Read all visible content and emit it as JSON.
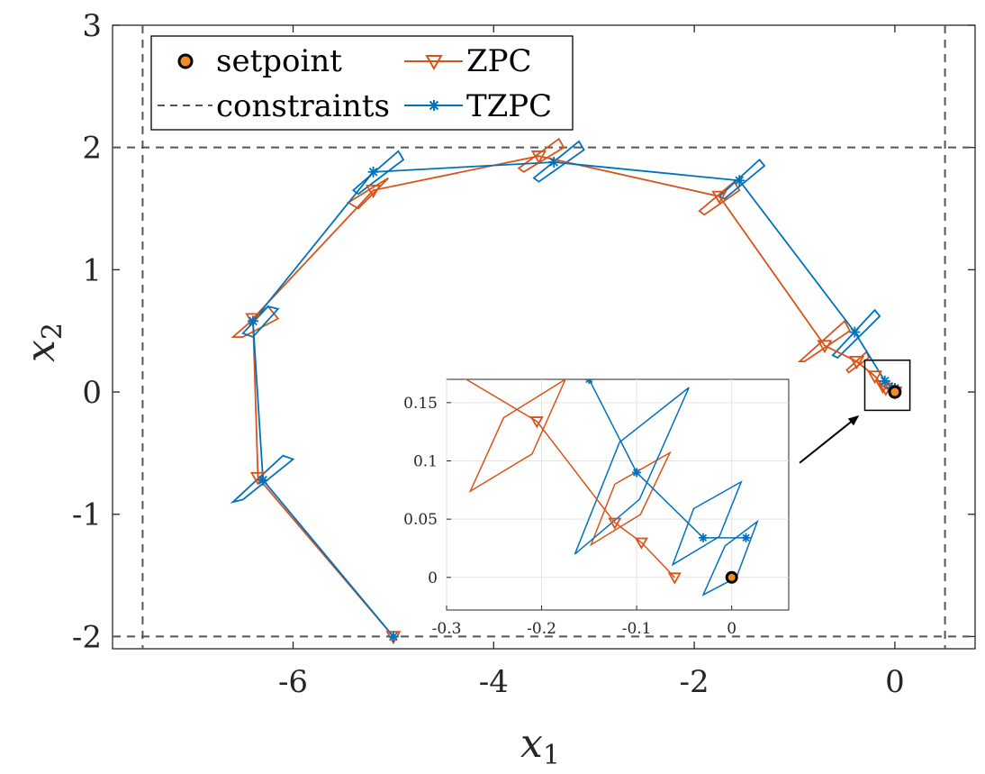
{
  "chart_data": [
    {
      "id": "main",
      "type": "line",
      "xlabel": "x",
      "xlabel_sub": "1",
      "ylabel": "x",
      "ylabel_sub": "2",
      "xlim": [
        -7.8,
        0.8
      ],
      "ylim": [
        -2.1,
        3
      ],
      "xticks": [
        -6,
        -4,
        -2,
        0
      ],
      "xtick_labels": [
        "-6",
        "-4",
        "-2",
        "0"
      ],
      "yticks": [
        -2,
        -1,
        0,
        1,
        2,
        3
      ],
      "ytick_labels": [
        "-2",
        "-1",
        "0",
        "1",
        "2",
        "3"
      ],
      "grid": false,
      "legend_position": "top-left",
      "legend": [
        {
          "label": "setpoint",
          "marker": "filled-circle"
        },
        {
          "label": "constraints",
          "marker": "dashed-line"
        },
        {
          "label": "ZPC",
          "marker": "down-triangle"
        },
        {
          "label": "TZPC",
          "marker": "asterisk"
        }
      ],
      "constraints": {
        "x1": [
          -7.5,
          0.5
        ],
        "x2": [
          -2,
          2
        ]
      },
      "setpoint": [
        0,
        0
      ],
      "series": [
        {
          "name": "ZPC",
          "color": "#D95319",
          "marker": "down-triangle",
          "points": [
            [
              -5.0,
              -2.0
            ],
            [
              -6.35,
              -0.7
            ],
            [
              -6.4,
              0.6
            ],
            [
              -5.2,
              1.65
            ],
            [
              -3.55,
              1.93
            ],
            [
              -1.75,
              1.6
            ],
            [
              -0.7,
              0.38
            ],
            [
              -0.38,
              0.25
            ],
            [
              -0.2,
              0.13
            ],
            [
              -0.12,
              0.05
            ],
            [
              -0.09,
              0.03
            ],
            [
              0.0,
              0.0
            ]
          ],
          "sets": [
            [
              [
                -6.6,
                0.45
              ],
              [
                -6.25,
                0.7
              ],
              [
                -6.15,
                0.6
              ],
              [
                -6.5,
                0.45
              ]
            ],
            [
              [
                -5.45,
                1.55
              ],
              [
                -5.15,
                1.7
              ],
              [
                -5.05,
                1.75
              ],
              [
                -5.35,
                1.5
              ]
            ],
            [
              [
                -3.75,
                1.83
              ],
              [
                -3.35,
                2.07
              ],
              [
                -3.3,
                2.0
              ],
              [
                -3.7,
                1.8
              ]
            ],
            [
              [
                -1.95,
                1.48
              ],
              [
                -1.6,
                1.72
              ],
              [
                -1.55,
                1.65
              ],
              [
                -1.9,
                1.45
              ]
            ],
            [
              [
                -0.95,
                0.25
              ],
              [
                -0.5,
                0.58
              ],
              [
                -0.45,
                0.5
              ],
              [
                -0.9,
                0.25
              ]
            ],
            [
              [
                -0.48,
                0.18
              ],
              [
                -0.28,
                0.33
              ],
              [
                -0.26,
                0.28
              ],
              [
                -0.46,
                0.16
              ]
            ]
          ]
        },
        {
          "name": "TZPC",
          "color": "#0072BD",
          "marker": "asterisk",
          "points": [
            [
              -5.0,
              -2.0
            ],
            [
              -6.3,
              -0.72
            ],
            [
              -6.4,
              0.58
            ],
            [
              -5.2,
              1.8
            ],
            [
              -3.4,
              1.88
            ],
            [
              -1.55,
              1.73
            ],
            [
              -0.4,
              0.49
            ],
            [
              -0.1,
              0.09
            ],
            [
              -0.03,
              0.035
            ],
            [
              0.0,
              0.03
            ],
            [
              0.0,
              0.0
            ]
          ],
          "sets": [
            [
              [
                -6.6,
                -0.9
              ],
              [
                -6.1,
                -0.52
              ],
              [
                -6.0,
                -0.55
              ],
              [
                -6.5,
                -0.88
              ]
            ],
            [
              [
                -6.5,
                0.48
              ],
              [
                -6.25,
                0.7
              ],
              [
                -6.15,
                0.68
              ],
              [
                -6.4,
                0.45
              ]
            ],
            [
              [
                -5.4,
                1.65
              ],
              [
                -4.95,
                1.97
              ],
              [
                -4.9,
                1.9
              ],
              [
                -5.35,
                1.62
              ]
            ],
            [
              [
                -3.6,
                1.75
              ],
              [
                -3.15,
                2.05
              ],
              [
                -3.1,
                1.98
              ],
              [
                -3.55,
                1.72
              ]
            ],
            [
              [
                -1.75,
                1.6
              ],
              [
                -1.35,
                1.9
              ],
              [
                -1.3,
                1.85
              ],
              [
                -1.7,
                1.58
              ]
            ],
            [
              [
                -0.62,
                0.3
              ],
              [
                -0.2,
                0.67
              ],
              [
                -0.15,
                0.62
              ],
              [
                -0.57,
                0.28
              ]
            ]
          ]
        }
      ],
      "arrow": {
        "from": [
          -0.95,
          -0.58
        ],
        "to": [
          -0.37,
          -0.2
        ]
      },
      "zoom_box": {
        "x": [
          -0.3,
          0.15
        ],
        "y": [
          -0.15,
          0.26
        ]
      }
    },
    {
      "id": "inset",
      "type": "line",
      "xlim": [
        -0.3,
        0.06
      ],
      "ylim": [
        -0.028,
        0.17
      ],
      "xticks": [
        -0.3,
        -0.2,
        -0.1,
        0
      ],
      "xtick_labels": [
        "-0.3",
        "-0.2",
        "-0.1",
        "0"
      ],
      "yticks": [
        0,
        0.05,
        0.1,
        0.15
      ],
      "ytick_labels": [
        "0",
        "0.05",
        "0.1",
        "0.15"
      ],
      "grid": true,
      "series": [
        {
          "name": "ZPC",
          "color": "#D95319",
          "marker": "down-triangle",
          "points": [
            [
              -0.3,
              0.18
            ],
            [
              -0.205,
              0.134
            ],
            [
              -0.123,
              0.047
            ],
            [
              -0.095,
              0.03
            ],
            [
              -0.06,
              0.0
            ]
          ],
          "sets": [
            [
              [
                -0.275,
                0.074
              ],
              [
                -0.24,
                0.137
              ],
              [
                -0.175,
                0.17
              ],
              [
                -0.21,
                0.106
              ]
            ],
            [
              [
                -0.148,
                0.028
              ],
              [
                -0.123,
                0.08
              ],
              [
                -0.065,
                0.107
              ],
              [
                -0.096,
                0.054
              ]
            ]
          ]
        },
        {
          "name": "TZPC",
          "color": "#0072BD",
          "marker": "asterisk",
          "points": [
            [
              -0.15,
              0.17
            ],
            [
              -0.1,
              0.09
            ],
            [
              -0.03,
              0.034
            ],
            [
              0.015,
              0.034
            ]
          ],
          "sets": [
            [
              [
                -0.165,
                0.02
              ],
              [
                -0.118,
                0.116
              ],
              [
                -0.045,
                0.163
              ],
              [
                -0.097,
                0.067
              ]
            ],
            [
              [
                -0.062,
                0.011
              ],
              [
                -0.04,
                0.059
              ],
              [
                0.01,
                0.082
              ],
              [
                -0.013,
                0.035
              ]
            ],
            [
              [
                -0.03,
                -0.015
              ],
              [
                -0.007,
                0.027
              ],
              [
                0.027,
                0.048
              ],
              [
                0.005,
                0.0
              ]
            ]
          ]
        }
      ],
      "setpoint": [
        0,
        0
      ]
    }
  ]
}
